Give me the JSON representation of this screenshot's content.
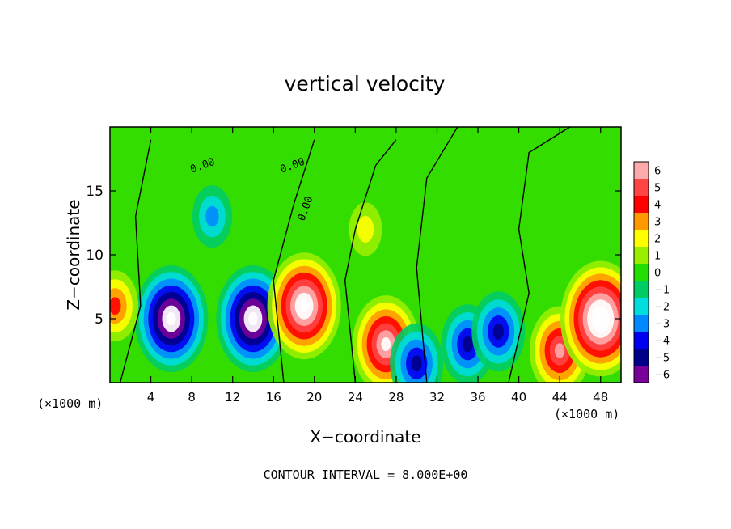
{
  "chart_data": {
    "type": "heatmap",
    "title": "vertical velocity",
    "xlabel": "X−coordinate",
    "ylabel": "Z−coordinate",
    "x_unit_label": "(×1000 m)",
    "z_unit_label": "(×1000 m)",
    "xlim": [
      0,
      50
    ],
    "ylim": [
      0,
      20
    ],
    "x_ticks": [
      4,
      8,
      12,
      16,
      20,
      24,
      28,
      32,
      36,
      40,
      44,
      48
    ],
    "y_ticks": [
      5,
      10,
      15
    ],
    "colorbar": {
      "ticks": [
        6,
        5,
        4,
        3,
        2,
        1,
        0,
        -1,
        -2,
        -3,
        -4,
        -5,
        -6
      ],
      "tick_labels": [
        "6",
        "5",
        "4",
        "3",
        "2",
        "1",
        "0",
        "−1",
        "−2",
        "−3",
        "−4",
        "−5",
        "−6"
      ],
      "range": [
        -6,
        6
      ],
      "colors": [
        "#ffaaaa",
        "#ff4444",
        "#ff0000",
        "#ff9900",
        "#ffff00",
        "#99ee00",
        "#22dd00",
        "#00cc66",
        "#00dddd",
        "#0088ff",
        "#0000ee",
        "#000088",
        "#770099"
      ]
    },
    "contour_label": "0.00",
    "contour_interval_text": "CONTOUR INTERVAL = 8.000E+00",
    "features": [
      {
        "x": 6,
        "z": 5,
        "w": -8
      },
      {
        "x": 14,
        "z": 5,
        "w": -8
      },
      {
        "x": 10,
        "z": 13,
        "w": -3
      },
      {
        "x": 19,
        "z": 6,
        "w": 8
      },
      {
        "x": 27,
        "z": 3,
        "w": 7
      },
      {
        "x": 30,
        "z": 1.5,
        "w": -5
      },
      {
        "x": 35,
        "z": 3,
        "w": -5
      },
      {
        "x": 38,
        "z": 4,
        "w": -5
      },
      {
        "x": 44,
        "z": 2.5,
        "w": 6
      },
      {
        "x": 48,
        "z": 5,
        "w": 9
      },
      {
        "x": 0.5,
        "z": 6,
        "w": 4
      },
      {
        "x": 25,
        "z": 12,
        "w": 2
      }
    ]
  }
}
